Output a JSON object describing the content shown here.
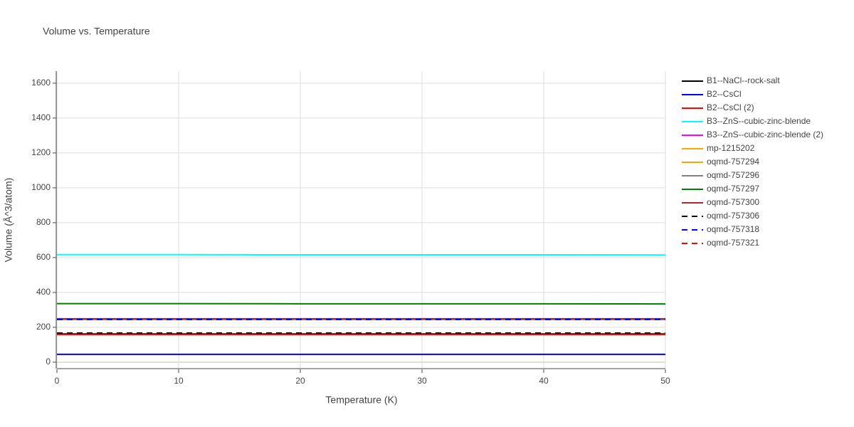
{
  "chart_data": {
    "type": "line",
    "title": "Volume vs. Temperature",
    "x_label": "Temperature (K)",
    "y_label": "Volume (Å^3/atom)",
    "x": [
      0,
      10,
      20,
      30,
      40,
      50
    ],
    "xlim": [
      0,
      50
    ],
    "xticks": [
      0,
      10,
      20,
      30,
      40,
      50
    ],
    "ylim": [
      -37,
      1669
    ],
    "yticks": [
      0,
      200,
      400,
      600,
      800,
      1000,
      1200,
      1400,
      1600
    ],
    "grid": true,
    "legend": "right",
    "series": [
      {
        "name": "B1--NaCl--rock-salt",
        "color": "#000000",
        "dash": "solid",
        "values": [
          162,
          162,
          162,
          162,
          162,
          162
        ]
      },
      {
        "name": "B2--CsCl",
        "color": "#0000ff",
        "dash": "solid",
        "values": [
          45,
          45,
          45,
          45,
          45,
          45
        ]
      },
      {
        "name": "B2--CsCl (2)",
        "color": "#ff0000",
        "dash": "solid",
        "values": [
          159,
          159,
          159,
          159,
          159,
          159
        ]
      },
      {
        "name": "B3--ZnS--cubic-zinc-blende",
        "color": "#00ffff",
        "dash": "solid",
        "values": [
          617,
          617,
          616,
          616,
          616,
          615
        ]
      },
      {
        "name": "B3--ZnS--cubic-zinc-blende (2)",
        "color": "#ff00ff",
        "dash": "solid",
        "values": [
          248,
          248,
          248,
          248,
          248,
          248
        ]
      },
      {
        "name": "mp-1215202",
        "color": "#ffa500",
        "dash": "solid",
        "values": [
          246,
          246,
          246,
          246,
          246,
          246
        ]
      },
      {
        "name": "oqmd-757294",
        "color": "#ffa500",
        "dash": "solid",
        "values": [
          246,
          246,
          246,
          246,
          246,
          246
        ]
      },
      {
        "name": "oqmd-757296",
        "color": "#808080",
        "dash": "solid",
        "values": [
          245,
          245,
          245,
          245,
          245,
          245
        ]
      },
      {
        "name": "oqmd-757297",
        "color": "#008000",
        "dash": "solid",
        "values": [
          336,
          336,
          335,
          335,
          335,
          334
        ]
      },
      {
        "name": "oqmd-757300",
        "color": "#a52a2a",
        "dash": "solid",
        "values": [
          249,
          249,
          249,
          249,
          249,
          249
        ]
      },
      {
        "name": "oqmd-757306",
        "color": "#000000",
        "dash": "dash",
        "values": [
          167,
          167,
          167,
          167,
          167,
          167
        ]
      },
      {
        "name": "oqmd-757318",
        "color": "#0000ff",
        "dash": "dash",
        "values": [
          245,
          245,
          245,
          245,
          245,
          245
        ]
      },
      {
        "name": "oqmd-757321",
        "color": "#ff0000",
        "dash": "dash",
        "values": [
          160,
          160,
          160,
          160,
          160,
          160
        ]
      }
    ]
  }
}
